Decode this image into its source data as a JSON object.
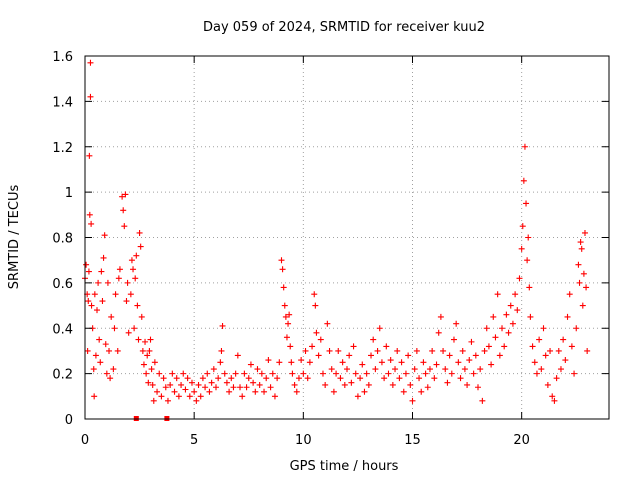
{
  "chart_data": {
    "type": "scatter",
    "title": "Day 059 of 2024, SRMTID for receiver kuu2",
    "xlabel": "GPS time / hours",
    "ylabel": "SRMTID / TECUs",
    "xlim": [
      0,
      24
    ],
    "ylim": [
      0,
      1.6
    ],
    "x_ticks": [
      0,
      5,
      10,
      15,
      20
    ],
    "x_tick_labels": [
      "0",
      "5",
      "10",
      "15",
      "20"
    ],
    "y_ticks": [
      0,
      0.2,
      0.4,
      0.6,
      0.8,
      1.0,
      1.2,
      1.4,
      1.6
    ],
    "y_tick_labels": [
      "0",
      "0.2",
      "0.4",
      "0.6",
      "0.8",
      "1",
      "1.2",
      "1.4",
      "1.6"
    ],
    "grid": true,
    "marker": "plus",
    "series": [
      {
        "name": "SRMTID",
        "color": "#ff0000",
        "points": [
          [
            0.0,
            0.62
          ],
          [
            0.05,
            0.68
          ],
          [
            0.1,
            0.55
          ],
          [
            0.12,
            0.3
          ],
          [
            0.15,
            0.52
          ],
          [
            0.18,
            0.65
          ],
          [
            0.2,
            1.16
          ],
          [
            0.22,
            0.9
          ],
          [
            0.25,
            1.42
          ],
          [
            0.25,
            1.57
          ],
          [
            0.28,
            0.86
          ],
          [
            0.3,
            0.5
          ],
          [
            0.35,
            0.4
          ],
          [
            0.4,
            0.22
          ],
          [
            0.42,
            0.1
          ],
          [
            0.45,
            0.55
          ],
          [
            0.5,
            0.28
          ],
          [
            0.55,
            0.48
          ],
          [
            0.6,
            0.6
          ],
          [
            0.65,
            0.35
          ],
          [
            0.7,
            0.25
          ],
          [
            0.75,
            0.65
          ],
          [
            0.8,
            0.52
          ],
          [
            0.85,
            0.71
          ],
          [
            0.9,
            0.81
          ],
          [
            0.95,
            0.33
          ],
          [
            1.0,
            0.2
          ],
          [
            1.05,
            0.6
          ],
          [
            1.1,
            0.3
          ],
          [
            1.15,
            0.18
          ],
          [
            1.2,
            0.45
          ],
          [
            1.3,
            0.22
          ],
          [
            1.35,
            0.4
          ],
          [
            1.4,
            0.55
          ],
          [
            1.5,
            0.3
          ],
          [
            1.55,
            0.62
          ],
          [
            1.6,
            0.66
          ],
          [
            1.7,
            0.98
          ],
          [
            1.75,
            0.92
          ],
          [
            1.8,
            0.85
          ],
          [
            1.85,
            0.99
          ],
          [
            1.9,
            0.52
          ],
          [
            1.95,
            0.6
          ],
          [
            2.0,
            0.38
          ],
          [
            2.1,
            0.55
          ],
          [
            2.15,
            0.7
          ],
          [
            2.2,
            0.66
          ],
          [
            2.25,
            0.4
          ],
          [
            2.3,
            0.62
          ],
          [
            2.35,
            0.72
          ],
          [
            2.4,
            0.5
          ],
          [
            2.45,
            0.35
          ],
          [
            2.5,
            0.82
          ],
          [
            2.55,
            0.76
          ],
          [
            2.6,
            0.45
          ],
          [
            2.65,
            0.3
          ],
          [
            2.7,
            0.24
          ],
          [
            2.75,
            0.34
          ],
          [
            2.8,
            0.2
          ],
          [
            2.85,
            0.28
          ],
          [
            2.9,
            0.16
          ],
          [
            2.95,
            0.3
          ],
          [
            3.0,
            0.35
          ],
          [
            3.05,
            0.22
          ],
          [
            3.1,
            0.15
          ],
          [
            3.15,
            0.08
          ],
          [
            3.2,
            0.25
          ],
          [
            3.3,
            0.12
          ],
          [
            3.4,
            0.2
          ],
          [
            3.5,
            0.1
          ],
          [
            3.6,
            0.18
          ],
          [
            3.7,
            0.14
          ],
          [
            3.8,
            0.08
          ],
          [
            3.9,
            0.15
          ],
          [
            4.0,
            0.2
          ],
          [
            4.1,
            0.12
          ],
          [
            4.2,
            0.18
          ],
          [
            4.3,
            0.1
          ],
          [
            4.4,
            0.15
          ],
          [
            4.5,
            0.2
          ],
          [
            4.6,
            0.13
          ],
          [
            4.7,
            0.18
          ],
          [
            4.8,
            0.1
          ],
          [
            4.9,
            0.16
          ],
          [
            5.0,
            0.12
          ],
          [
            5.1,
            0.08
          ],
          [
            5.2,
            0.15
          ],
          [
            5.3,
            0.1
          ],
          [
            5.4,
            0.18
          ],
          [
            5.5,
            0.14
          ],
          [
            5.6,
            0.2
          ],
          [
            5.7,
            0.12
          ],
          [
            5.8,
            0.16
          ],
          [
            5.9,
            0.22
          ],
          [
            6.0,
            0.14
          ],
          [
            6.1,
            0.18
          ],
          [
            6.2,
            0.25
          ],
          [
            6.25,
            0.3
          ],
          [
            6.3,
            0.41
          ],
          [
            6.4,
            0.2
          ],
          [
            6.5,
            0.16
          ],
          [
            6.6,
            0.12
          ],
          [
            6.7,
            0.18
          ],
          [
            6.8,
            0.14
          ],
          [
            6.9,
            0.2
          ],
          [
            7.0,
            0.28
          ],
          [
            7.1,
            0.14
          ],
          [
            7.2,
            0.1
          ],
          [
            7.3,
            0.2
          ],
          [
            7.4,
            0.14
          ],
          [
            7.5,
            0.18
          ],
          [
            7.6,
            0.24
          ],
          [
            7.7,
            0.16
          ],
          [
            7.8,
            0.12
          ],
          [
            7.9,
            0.22
          ],
          [
            8.0,
            0.15
          ],
          [
            8.1,
            0.2
          ],
          [
            8.2,
            0.12
          ],
          [
            8.3,
            0.18
          ],
          [
            8.4,
            0.26
          ],
          [
            8.5,
            0.14
          ],
          [
            8.6,
            0.2
          ],
          [
            8.7,
            0.1
          ],
          [
            8.8,
            0.18
          ],
          [
            8.9,
            0.25
          ],
          [
            9.0,
            0.7
          ],
          [
            9.05,
            0.66
          ],
          [
            9.1,
            0.58
          ],
          [
            9.15,
            0.5
          ],
          [
            9.2,
            0.45
          ],
          [
            9.25,
            0.36
          ],
          [
            9.3,
            0.42
          ],
          [
            9.35,
            0.46
          ],
          [
            9.4,
            0.32
          ],
          [
            9.45,
            0.25
          ],
          [
            9.5,
            0.2
          ],
          [
            9.6,
            0.15
          ],
          [
            9.7,
            0.12
          ],
          [
            9.8,
            0.18
          ],
          [
            9.9,
            0.26
          ],
          [
            10.0,
            0.2
          ],
          [
            10.1,
            0.3
          ],
          [
            10.2,
            0.18
          ],
          [
            10.3,
            0.25
          ],
          [
            10.4,
            0.32
          ],
          [
            10.5,
            0.55
          ],
          [
            10.55,
            0.5
          ],
          [
            10.6,
            0.38
          ],
          [
            10.7,
            0.28
          ],
          [
            10.8,
            0.35
          ],
          [
            10.9,
            0.2
          ],
          [
            11.0,
            0.15
          ],
          [
            11.1,
            0.42
          ],
          [
            11.2,
            0.3
          ],
          [
            11.3,
            0.22
          ],
          [
            11.4,
            0.12
          ],
          [
            11.5,
            0.2
          ],
          [
            11.6,
            0.3
          ],
          [
            11.7,
            0.18
          ],
          [
            11.8,
            0.25
          ],
          [
            11.9,
            0.15
          ],
          [
            12.0,
            0.22
          ],
          [
            12.1,
            0.28
          ],
          [
            12.2,
            0.16
          ],
          [
            12.3,
            0.32
          ],
          [
            12.4,
            0.2
          ],
          [
            12.5,
            0.1
          ],
          [
            12.6,
            0.18
          ],
          [
            12.7,
            0.24
          ],
          [
            12.8,
            0.12
          ],
          [
            12.9,
            0.2
          ],
          [
            13.0,
            0.15
          ],
          [
            13.1,
            0.28
          ],
          [
            13.2,
            0.35
          ],
          [
            13.3,
            0.22
          ],
          [
            13.4,
            0.3
          ],
          [
            13.5,
            0.4
          ],
          [
            13.6,
            0.25
          ],
          [
            13.7,
            0.18
          ],
          [
            13.8,
            0.32
          ],
          [
            13.9,
            0.2
          ],
          [
            14.0,
            0.26
          ],
          [
            14.1,
            0.15
          ],
          [
            14.2,
            0.22
          ],
          [
            14.3,
            0.3
          ],
          [
            14.4,
            0.18
          ],
          [
            14.5,
            0.25
          ],
          [
            14.6,
            0.12
          ],
          [
            14.7,
            0.2
          ],
          [
            14.8,
            0.28
          ],
          [
            14.9,
            0.15
          ],
          [
            15.0,
            0.08
          ],
          [
            15.1,
            0.22
          ],
          [
            15.2,
            0.3
          ],
          [
            15.3,
            0.18
          ],
          [
            15.4,
            0.12
          ],
          [
            15.5,
            0.25
          ],
          [
            15.6,
            0.2
          ],
          [
            15.7,
            0.14
          ],
          [
            15.8,
            0.22
          ],
          [
            15.9,
            0.3
          ],
          [
            16.0,
            0.18
          ],
          [
            16.1,
            0.24
          ],
          [
            16.2,
            0.38
          ],
          [
            16.3,
            0.45
          ],
          [
            16.4,
            0.3
          ],
          [
            16.5,
            0.22
          ],
          [
            16.6,
            0.16
          ],
          [
            16.7,
            0.28
          ],
          [
            16.8,
            0.2
          ],
          [
            16.9,
            0.35
          ],
          [
            17.0,
            0.42
          ],
          [
            17.1,
            0.25
          ],
          [
            17.2,
            0.18
          ],
          [
            17.3,
            0.3
          ],
          [
            17.4,
            0.22
          ],
          [
            17.5,
            0.15
          ],
          [
            17.6,
            0.26
          ],
          [
            17.7,
            0.34
          ],
          [
            17.8,
            0.2
          ],
          [
            17.9,
            0.28
          ],
          [
            18.0,
            0.14
          ],
          [
            18.1,
            0.22
          ],
          [
            18.2,
            0.08
          ],
          [
            18.3,
            0.3
          ],
          [
            18.4,
            0.4
          ],
          [
            18.5,
            0.32
          ],
          [
            18.6,
            0.24
          ],
          [
            18.7,
            0.45
          ],
          [
            18.8,
            0.36
          ],
          [
            18.9,
            0.55
          ],
          [
            19.0,
            0.28
          ],
          [
            19.1,
            0.4
          ],
          [
            19.2,
            0.32
          ],
          [
            19.3,
            0.46
          ],
          [
            19.4,
            0.38
          ],
          [
            19.5,
            0.5
          ],
          [
            19.6,
            0.42
          ],
          [
            19.7,
            0.55
          ],
          [
            19.8,
            0.48
          ],
          [
            19.9,
            0.62
          ],
          [
            20.0,
            0.75
          ],
          [
            20.05,
            0.85
          ],
          [
            20.1,
            1.05
          ],
          [
            20.15,
            1.2
          ],
          [
            20.2,
            0.95
          ],
          [
            20.25,
            0.7
          ],
          [
            20.3,
            0.8
          ],
          [
            20.35,
            0.58
          ],
          [
            20.4,
            0.45
          ],
          [
            20.5,
            0.32
          ],
          [
            20.6,
            0.25
          ],
          [
            20.7,
            0.2
          ],
          [
            20.8,
            0.35
          ],
          [
            20.9,
            0.22
          ],
          [
            21.0,
            0.4
          ],
          [
            21.1,
            0.28
          ],
          [
            21.2,
            0.15
          ],
          [
            21.3,
            0.3
          ],
          [
            21.4,
            0.1
          ],
          [
            21.5,
            0.08
          ],
          [
            21.6,
            0.18
          ],
          [
            21.7,
            0.3
          ],
          [
            21.8,
            0.22
          ],
          [
            21.9,
            0.35
          ],
          [
            22.0,
            0.26
          ],
          [
            22.1,
            0.45
          ],
          [
            22.2,
            0.55
          ],
          [
            22.3,
            0.32
          ],
          [
            22.4,
            0.2
          ],
          [
            22.5,
            0.4
          ],
          [
            22.6,
            0.68
          ],
          [
            22.65,
            0.6
          ],
          [
            22.7,
            0.78
          ],
          [
            22.75,
            0.75
          ],
          [
            22.8,
            0.5
          ],
          [
            22.85,
            0.64
          ],
          [
            22.9,
            0.82
          ],
          [
            22.95,
            0.58
          ],
          [
            23.0,
            0.3
          ]
        ]
      }
    ],
    "gap_markers": [
      {
        "x": 2.35,
        "y": 0
      },
      {
        "x": 3.75,
        "y": 0
      }
    ]
  }
}
